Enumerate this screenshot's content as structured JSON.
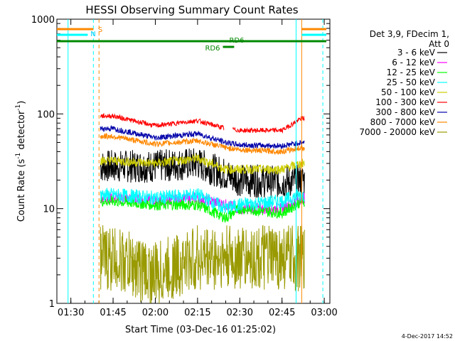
{
  "chart_data": {
    "type": "line",
    "title": "HESSI Observing Summary Count Rates",
    "xlabel": "Start Time (03-Dec-16 01:25:02)",
    "ylabel_main": "Count Rate (s",
    "ylabel_sup": "-1",
    "ylabel_mid": " detector",
    "ylabel_sup2": "-1",
    "ylabel_end": ")",
    "footer": "4-Dec-2017 14:52",
    "yscale": "log",
    "xlim": [
      "01:25:02",
      "03:02:00"
    ],
    "ylim": [
      1,
      1000
    ],
    "xticks": [
      "01:30",
      "01:45",
      "02:00",
      "02:15",
      "02:30",
      "02:45",
      "03:00"
    ],
    "yticks": [
      "1",
      "10",
      "100",
      "1000"
    ],
    "legend_header": [
      "Det 3,9, FDecim 1,",
      "Att 0"
    ],
    "series": [
      {
        "name": "3 - 6 keV",
        "color": "#000000",
        "x": [
          "01:45",
          "02:00",
          "02:15",
          "02:25",
          "02:30",
          "02:45",
          "02:52"
        ],
        "values": [
          28,
          28,
          30,
          23,
          20,
          19,
          20
        ]
      },
      {
        "name": "6 - 12 keV",
        "color": "#ff00ff",
        "x": [
          "01:45",
          "02:00",
          "02:15",
          "02:25",
          "02:30",
          "02:45",
          "02:52"
        ],
        "values": [
          13,
          12,
          13,
          11,
          10,
          10,
          13
        ]
      },
      {
        "name": "12 - 25 keV",
        "color": "#00ff00",
        "x": [
          "01:45",
          "02:00",
          "02:15",
          "02:25",
          "02:30",
          "02:45",
          "02:52"
        ],
        "values": [
          12,
          11,
          11,
          8,
          10,
          9,
          12
        ]
      },
      {
        "name": "25 - 50 keV",
        "color": "#00ffff",
        "x": [
          "01:45",
          "02:00",
          "02:15",
          "02:25",
          "02:30",
          "02:45",
          "02:52"
        ],
        "values": [
          14,
          13,
          14,
          10,
          11,
          12,
          14
        ]
      },
      {
        "name": "50 - 100 keV",
        "color": "#cccc00",
        "x": [
          "01:45",
          "02:00",
          "02:15",
          "02:25",
          "02:30",
          "02:45",
          "02:52"
        ],
        "values": [
          32,
          30,
          34,
          26,
          26,
          26,
          30
        ]
      },
      {
        "name": "100 - 300 keV",
        "color": "#ff0000",
        "x": [
          "01:45",
          "02:00",
          "02:15",
          "02:25",
          "02:30",
          "02:45",
          "02:52"
        ],
        "values": [
          95,
          75,
          85,
          70,
          67,
          67,
          90
        ]
      },
      {
        "name": "300 - 800 keV",
        "color": "#0000aa",
        "x": [
          "01:45",
          "02:00",
          "02:15",
          "02:25",
          "02:30",
          "02:45",
          "02:52"
        ],
        "values": [
          70,
          56,
          62,
          50,
          47,
          46,
          50
        ]
      },
      {
        "name": "800 - 7000 keV",
        "color": "#ff8800",
        "x": [
          "01:45",
          "02:00",
          "02:15",
          "02:25",
          "02:30",
          "02:45",
          "02:52"
        ],
        "values": [
          58,
          48,
          52,
          44,
          42,
          40,
          44
        ]
      },
      {
        "name": "7000 - 20000 keV",
        "color": "#999900",
        "x": [
          "01:45",
          "02:00",
          "02:15",
          "02:25",
          "02:30",
          "02:45",
          "02:52"
        ],
        "values": [
          3,
          2,
          3,
          3,
          3,
          3,
          3
        ]
      }
    ],
    "flag_labels": [
      {
        "text": "S",
        "color": "#ff8800"
      },
      {
        "text": "N",
        "color": "#00ccff"
      },
      {
        "text": "RD6",
        "color": "#008800"
      },
      {
        "text": "RD6",
        "color": "#008800"
      }
    ]
  }
}
